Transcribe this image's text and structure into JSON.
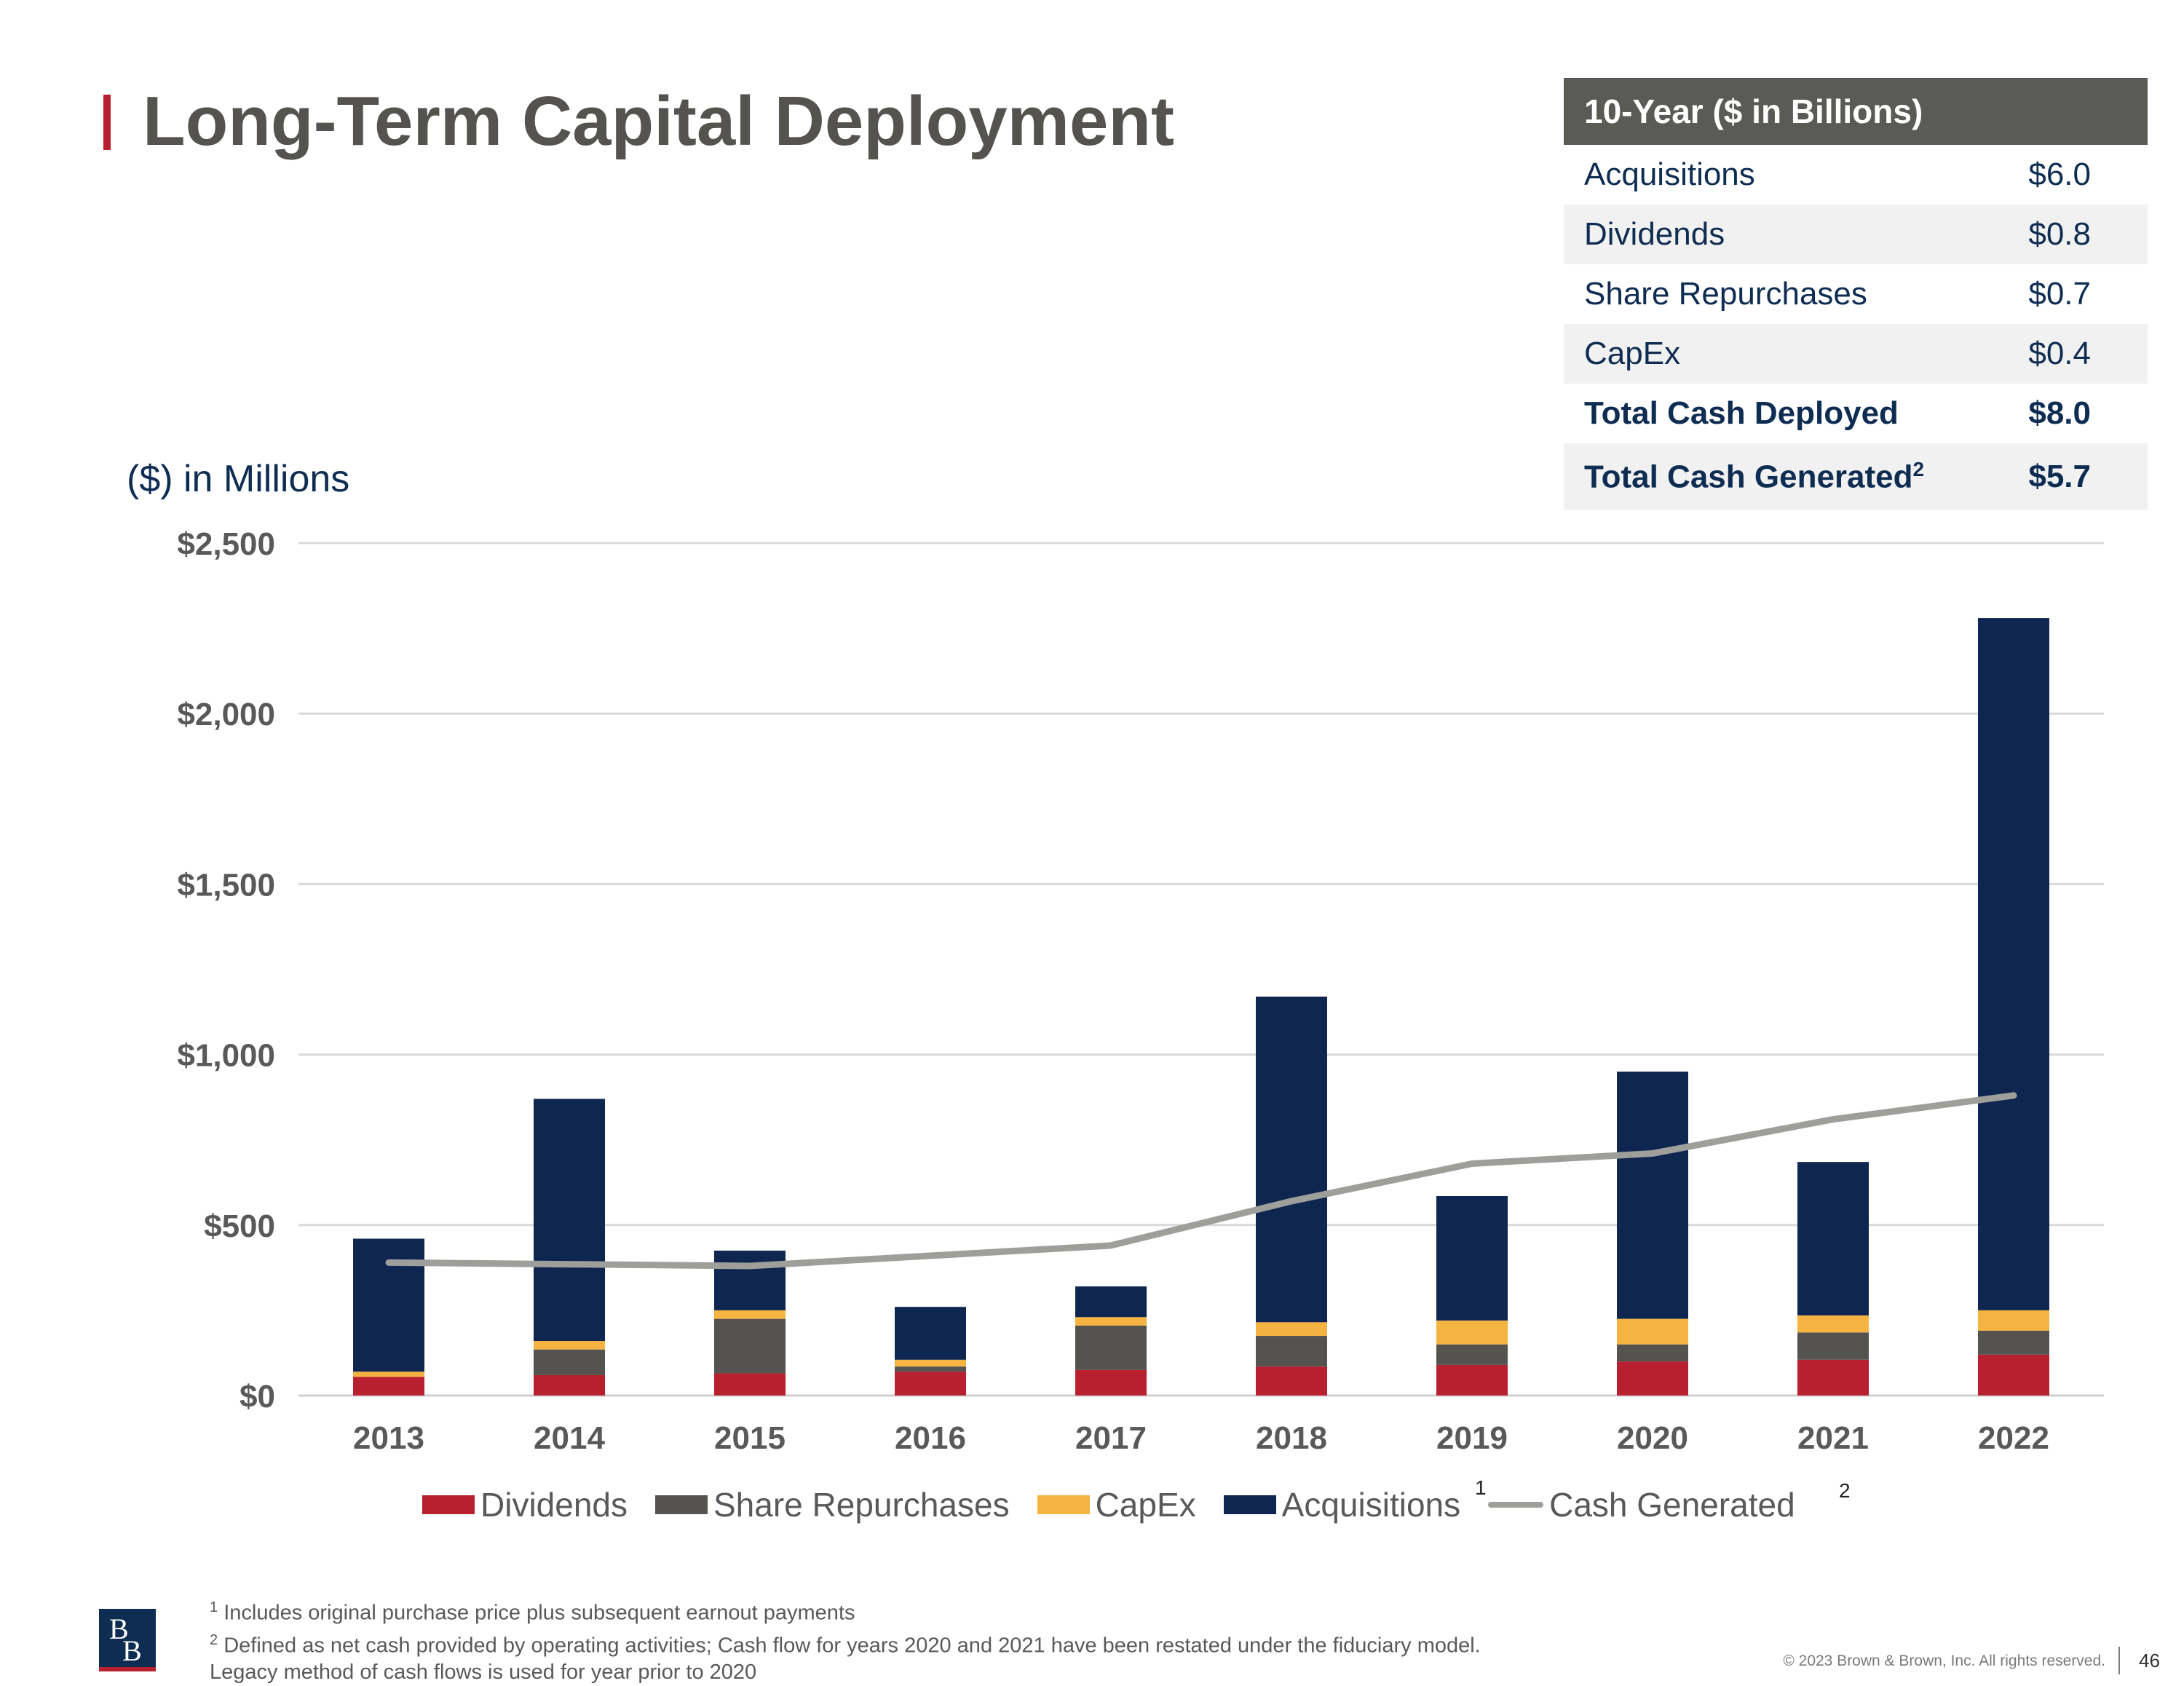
{
  "header": {
    "title": "Long-Term Capital Deployment",
    "units": "($) in Millions"
  },
  "summary_table": {
    "title": "10-Year ($ in Billions)",
    "rows": [
      {
        "label": "Acquisitions",
        "value": "$6.0"
      },
      {
        "label": "Dividends",
        "value": "$0.8"
      },
      {
        "label": "Share Repurchases",
        "value": "$0.7"
      },
      {
        "label": "CapEx",
        "value": "$0.4"
      },
      {
        "label": "Total Cash Deployed",
        "value": "$8.0"
      },
      {
        "label": "Total Cash Generated",
        "sup": "2",
        "value": "$5.7"
      }
    ]
  },
  "chart_data": {
    "type": "bar",
    "stacked": true,
    "categories": [
      "2013",
      "2014",
      "2015",
      "2016",
      "2017",
      "2018",
      "2019",
      "2020",
      "2021",
      "2022"
    ],
    "ylim": [
      0,
      2500
    ],
    "yticks": [
      0,
      500,
      1000,
      1500,
      2000,
      2500
    ],
    "ytick_labels": [
      "$0",
      "$500",
      "$1,000",
      "$1,500",
      "$2,000",
      "$2,500"
    ],
    "grid": true,
    "series": [
      {
        "name": "Dividends",
        "color": "#b81f2f",
        "values": [
          55,
          60,
          65,
          70,
          75,
          85,
          90,
          100,
          105,
          120
        ]
      },
      {
        "name": "Share Repurchases",
        "color": "#54534f",
        "values": [
          0,
          75,
          160,
          15,
          130,
          90,
          60,
          50,
          80,
          70
        ]
      },
      {
        "name": "CapEx",
        "color": "#f5b342",
        "values": [
          15,
          25,
          25,
          20,
          25,
          40,
          70,
          75,
          50,
          60
        ]
      },
      {
        "name": "Acquisitions",
        "color": "#0f2650",
        "values": [
          390,
          710,
          175,
          155,
          90,
          955,
          365,
          725,
          450,
          2030
        ]
      }
    ],
    "line_series": {
      "name": "Cash Generated",
      "color": "#9e9e9b",
      "values": [
        390,
        385,
        380,
        410,
        440,
        570,
        680,
        710,
        810,
        880
      ]
    },
    "legend_position": "bottom"
  },
  "legend": {
    "items": [
      "Dividends",
      "Share Repurchases",
      "CapEx",
      "Acquisitions",
      "Cash Generated"
    ],
    "note_acquisitions": "1",
    "note_cash": "2"
  },
  "footnotes": {
    "note1_num": "1",
    "note1": "Includes original purchase price plus subsequent earnout payments",
    "note2_num": "2",
    "note2": "Defined as net cash provided by operating activities; Cash flow for years 2020 and 2021 have been restated under the fiduciary model.",
    "note3": "Legacy method of cash flows is used for year prior to 2020"
  },
  "footer": {
    "logo_letter_top": "B",
    "logo_letter_bottom": "B",
    "copyright": "© 2023 Brown & Brown, Inc. All rights reserved.",
    "page": "46"
  }
}
